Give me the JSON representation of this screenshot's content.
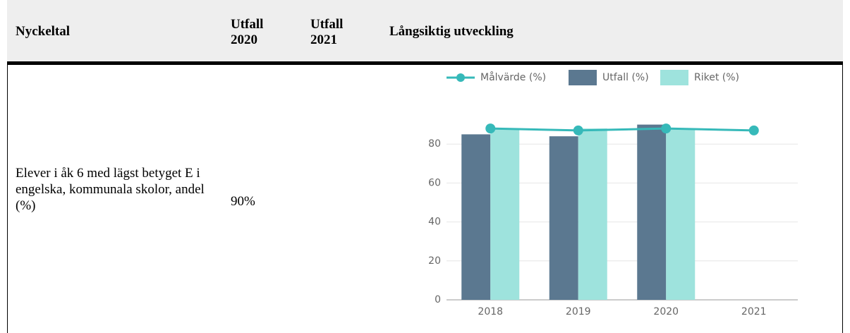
{
  "table": {
    "header": [
      "Nyckeltal",
      "Utfall 2020",
      "Utfall 2021",
      "Långsiktig utveckling"
    ],
    "rows": [
      [
        "Elever i åk 6 med lägst betyget E  i engelska, kommunala skolor, andel (%)",
        "90%"
      ]
    ]
  },
  "chart_data": {
    "type": "bar-line",
    "categories": [
      "2018",
      "2019",
      "2020",
      "2021"
    ],
    "series": [
      {
        "name": "Målvärde (%)",
        "type": "line",
        "color": "#36b9b9",
        "values": [
          88,
          87,
          88,
          87
        ]
      },
      {
        "name": "Utfall (%)",
        "type": "bar",
        "color": "#5b7890",
        "values": [
          85,
          84,
          90,
          null
        ]
      },
      {
        "name": "Riket (%)",
        "type": "bar",
        "color": "#9ee3dd",
        "values": [
          88,
          88,
          88,
          null
        ]
      }
    ],
    "ylim": [
      0,
      100
    ],
    "yticks": [
      0,
      20,
      40,
      60,
      80
    ],
    "grid": true
  }
}
